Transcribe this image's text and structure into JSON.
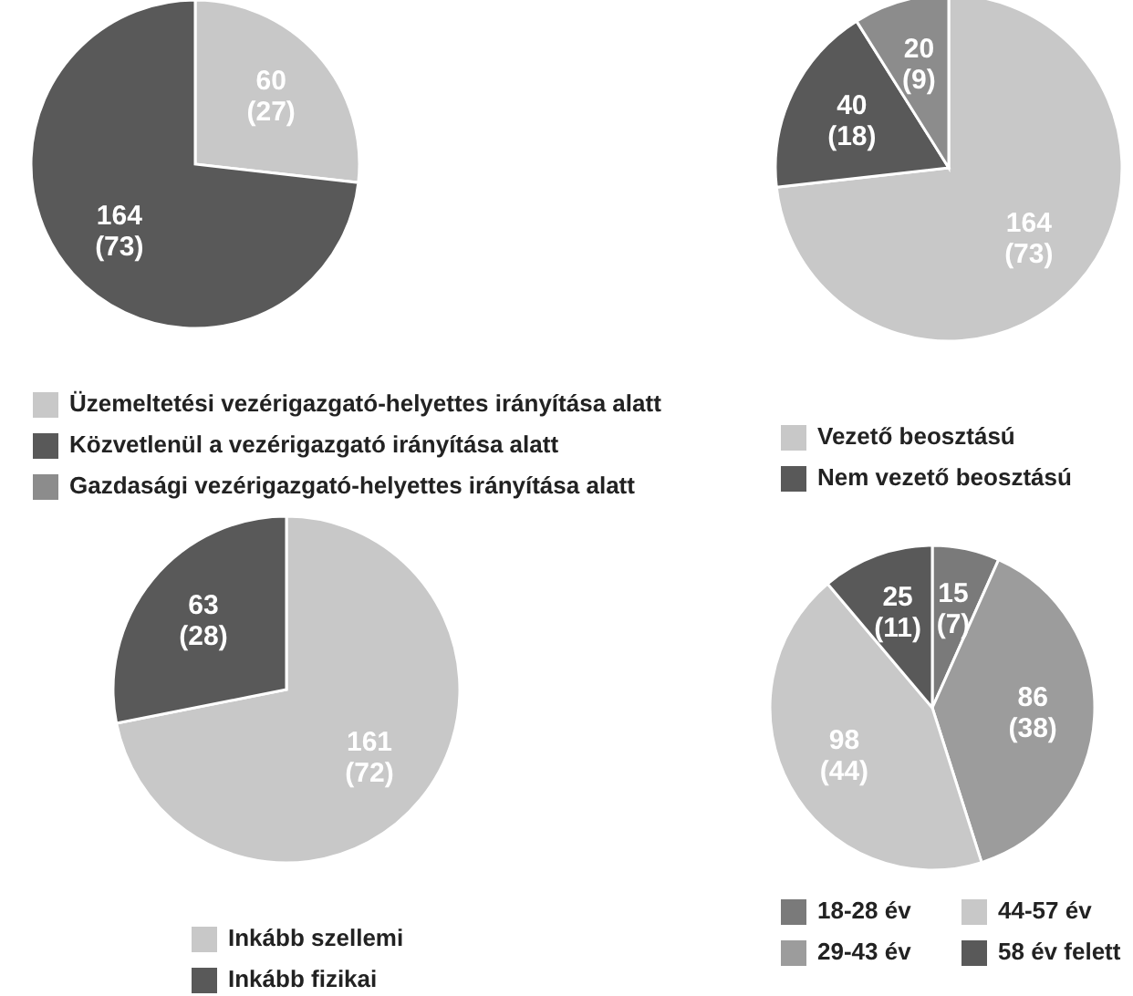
{
  "chart_data": [
    {
      "type": "pie",
      "categories": [
        "Üzemeltetési vezérigazgató-helyettes irányítása alatt",
        "Közvetlenül a vezérigazgató irányítása alatt",
        "Gazdasági vezérigazgató-helyettes irányítása alatt"
      ],
      "values": [
        60,
        164,
        null
      ],
      "colors": [
        "#c8c8c8",
        "#595959",
        "#8c8c8c"
      ],
      "value_labels": [
        "60 (27)",
        "164 (73)",
        null
      ],
      "legend": "bottom"
    },
    {
      "type": "pie",
      "categories": [
        "Vezető beosztású",
        "Nem vezető beosztású",
        null
      ],
      "values": [
        164,
        40,
        20
      ],
      "colors": [
        "#c8c8c8",
        "#595959",
        "#8c8c8c"
      ],
      "value_labels": [
        "164 (73)",
        "40 (18)",
        "20 (9)"
      ],
      "legend": "bottom"
    },
    {
      "type": "pie",
      "categories": [
        "Inkább szellemi",
        "Inkább fizikai"
      ],
      "values": [
        161,
        63
      ],
      "colors": [
        "#c8c8c8",
        "#595959"
      ],
      "value_labels": [
        "161 (72)",
        "63 (28)"
      ],
      "legend": "bottom"
    },
    {
      "type": "pie",
      "categories": [
        "18-28 év",
        "29-43 év",
        "44-57 év",
        "58 év felett"
      ],
      "values": [
        15,
        86,
        98,
        25
      ],
      "colors": [
        "#7a7a7a",
        "#9c9c9c",
        "#c8c8c8",
        "#595959"
      ],
      "value_labels": [
        "15 (7)",
        "86 (38)",
        "98 (44)",
        "25 (11)"
      ],
      "legend": "bottom"
    }
  ]
}
